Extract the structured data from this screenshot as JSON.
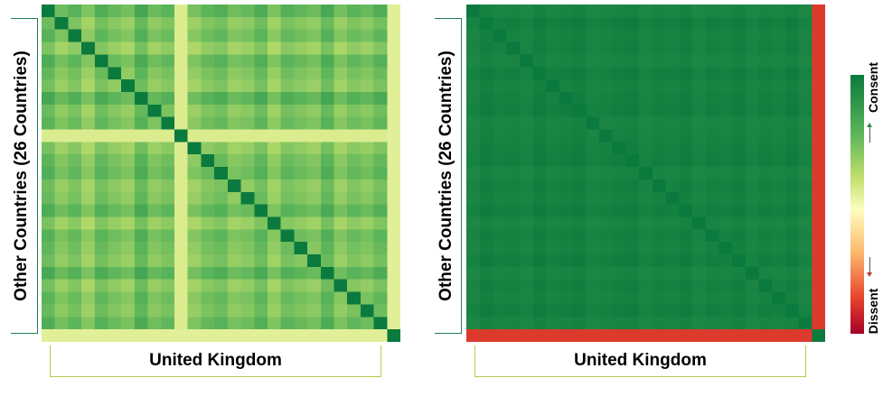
{
  "chart_data": [
    {
      "type": "heatmap",
      "title": "",
      "xlabel": "United Kingdom",
      "ylabel": "Other Countries (26 Countries)",
      "n_rows": 27,
      "n_cols": 27,
      "scale_min": 0,
      "scale_max": 1,
      "uk_row_value": 0.58,
      "uk_col_value": 0.58,
      "diagonal_value": 1.0,
      "weak_country_index": 10,
      "weak_country_value": 0.6,
      "base_values": [
        0.86,
        0.74,
        0.81,
        0.69,
        0.84,
        0.77,
        0.72,
        0.88,
        0.75,
        0.8,
        0.62,
        0.71,
        0.79,
        0.83,
        0.73,
        0.76,
        0.85,
        0.7,
        0.82,
        0.78,
        0.74,
        0.87,
        0.72,
        0.8,
        0.76,
        0.84
      ],
      "grid": false
    },
    {
      "type": "heatmap",
      "title": "",
      "xlabel": "United Kingdom",
      "ylabel": "Other Countries (26 Countries)",
      "n_rows": 27,
      "n_cols": 27,
      "scale_min": 0,
      "scale_max": 1,
      "uk_row_value": 0.14,
      "uk_col_value": 0.14,
      "diagonal_value": 1.0,
      "base_values": [
        0.96,
        0.99,
        0.97,
        0.98,
        0.96,
        0.99,
        0.97,
        0.98,
        0.99,
        0.96,
        0.97,
        0.98,
        0.99,
        0.96,
        0.98,
        0.97,
        0.99,
        0.96,
        0.98,
        0.97,
        0.99,
        0.96,
        0.98,
        0.97,
        0.99,
        0.96
      ],
      "grid": false
    }
  ],
  "colorbar": {
    "top_label": "Consent",
    "bottom_label": "Dissent",
    "colors": [
      "#a50026",
      "#e8442e",
      "#fdbc6f",
      "#fefdc0",
      "#c2e06c",
      "#58b359",
      "#0b7a3e"
    ]
  }
}
